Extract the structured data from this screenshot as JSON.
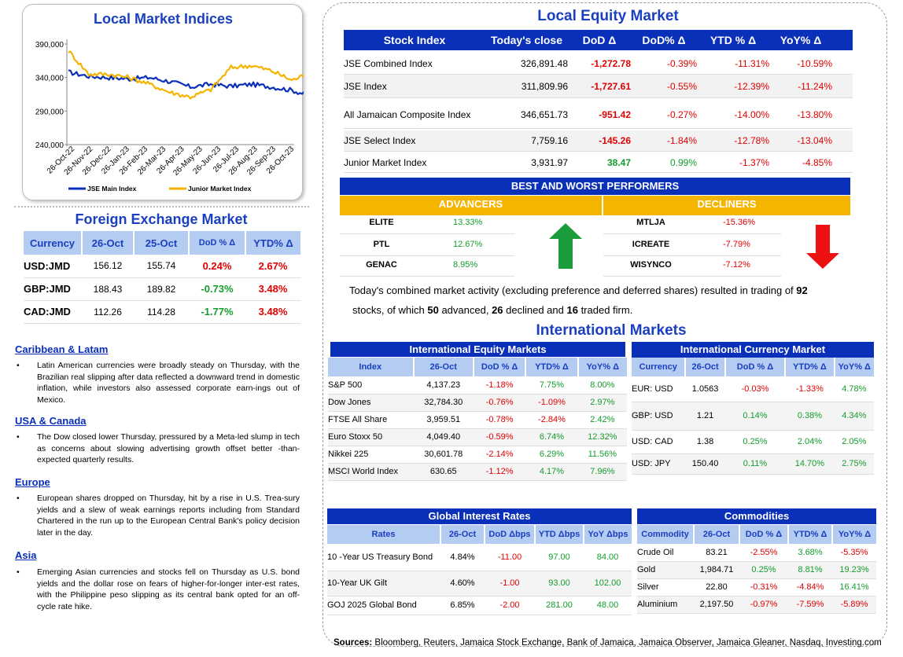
{
  "chart": {
    "title": "Local Market Indices",
    "y_ticks": [
      "390,000",
      "340,000",
      "290,000",
      "240,000"
    ],
    "x_ticks": [
      "26-Oct-22",
      "26-Nov-22",
      "26-Dec-22",
      "26-Jan-23",
      "26-Feb-23",
      "26-Mar-23",
      "26-Apr-23",
      "26-May-23",
      "26-Jun-23",
      "26-Jul-23",
      "26-Aug-23",
      "26-Sep-23",
      "26-Oct-23"
    ],
    "legend": [
      "JSE Main Index",
      "Junior Market Index"
    ]
  },
  "chart_data": {
    "type": "line",
    "ylim": [
      240000,
      390000
    ],
    "x": [
      "26-Oct-22",
      "26-Nov-22",
      "26-Dec-22",
      "26-Jan-23",
      "26-Feb-23",
      "26-Mar-23",
      "26-Apr-23",
      "26-May-23",
      "26-Jun-23",
      "26-Jul-23",
      "26-Aug-23",
      "26-Sep-23",
      "26-Oct-23"
    ],
    "series": [
      {
        "name": "JSE Main Index",
        "color": "#0a2fb8",
        "values": [
          348000,
          342000,
          340000,
          338000,
          340000,
          334000,
          326000,
          330000,
          327000,
          330000,
          326000,
          321000,
          312000
        ]
      },
      {
        "name": "Junior Market Index",
        "color": "#f5b400",
        "values": [
          380000,
          345000,
          345000,
          340000,
          330000,
          318000,
          311000,
          322000,
          355000,
          358000,
          350000,
          336000,
          348000
        ]
      }
    ]
  },
  "fx": {
    "title": "Foreign Exchange Market",
    "headers": [
      "Currency",
      "26-Oct",
      "25-Oct",
      "DoD % Δ",
      "YTD% Δ"
    ],
    "rows": [
      {
        "currency": "USD:JMD",
        "today": "156.12",
        "prev": "155.74",
        "dod": "0.24%",
        "ytd": "2.67%",
        "dod_color": "red",
        "ytd_color": "red"
      },
      {
        "currency": "GBP:JMD",
        "today": "188.43",
        "prev": "189.82",
        "dod": "-0.73%",
        "ytd": "3.48%",
        "dod_color": "green",
        "ytd_color": "red"
      },
      {
        "currency": "CAD:JMD",
        "today": "112.26",
        "prev": "114.28",
        "dod": "-1.77%",
        "ytd": "3.48%",
        "dod_color": "green",
        "ytd_color": "red"
      }
    ]
  },
  "news": [
    {
      "heading": "Caribbean & Latam",
      "body": "Latin American currencies were broadly steady on Thursday, with the Brazilian real slipping after data reflected a downward trend in domestic inflation, while investors also assessed corporate earn-ings out of Mexico."
    },
    {
      "heading": "USA & Canada",
      "body": "The Dow closed lower Thursday, pressured by a Meta-led slump in tech as concerns about slowing advertising growth offset better -than-expected quarterly results."
    },
    {
      "heading": "Europe",
      "body": "European shares dropped on Thursday, hit by a rise in U.S. Trea-sury yields and a slew of weak earnings reports including from Standard Chartered in the run up to the European Central Bank's policy decision later in the day."
    },
    {
      "heading": "Asia",
      "body": "Emerging Asian currencies and stocks fell on Thursday as U.S. bond yields and the dollar rose on fears of higher-for-longer inter-est rates, with the Philippine peso slipping as its central bank opted for an off-cycle rate hike."
    }
  ],
  "equity": {
    "title": "Local Equity Market",
    "headers": [
      "Stock Index",
      "Today's close",
      "DoD  Δ",
      "DoD% Δ",
      "YTD % Δ",
      "YoY% Δ"
    ],
    "rows": [
      {
        "name": "JSE Combined Index",
        "close": "326,891.48",
        "dod": "-1,272.78",
        "dodp": "-0.39%",
        "ytd": "-11.31%",
        "yoy": "-10.59%"
      },
      {
        "name": "JSE Index",
        "close": "311,809.96",
        "dod": "-1,727.61",
        "dodp": "-0.55%",
        "ytd": "-12.39%",
        "yoy": "-11.24%"
      },
      {
        "name": "All Jamaican Composite Index",
        "close": "346,651.73",
        "dod": "-951.42",
        "dodp": "-0.27%",
        "ytd": "-14.00%",
        "yoy": "-13.80%"
      },
      {
        "name": "JSE Select Index",
        "close": "7,759.16",
        "dod": "-145.26",
        "dodp": "-1.84%",
        "ytd": "-12.78%",
        "yoy": "-13.04%"
      },
      {
        "name": "Junior Market Index",
        "close": "3,931.97",
        "dod": "38.47",
        "dodp": "0.99%",
        "ytd": "-1.37%",
        "yoy": "-4.85%"
      }
    ]
  },
  "best_worst": {
    "title": "BEST AND WORST PERFORMERS",
    "advancers_label": "ADVANCERS",
    "decliners_label": "DECLINERS",
    "advancers": [
      {
        "name": "ELITE",
        "value": "13.33%"
      },
      {
        "name": "PTL",
        "value": "12.67%"
      },
      {
        "name": "GENAC",
        "value": "8.95%"
      }
    ],
    "decliners": [
      {
        "name": "MTLJA",
        "value": "-15.36%"
      },
      {
        "name": "ICREATE",
        "value": "-7.79%"
      },
      {
        "name": "WISYNCO",
        "value": "-7.12%"
      }
    ]
  },
  "summary": {
    "line1_a": "Today's combined market activity (excluding preference and deferred shares) resulted in trading of ",
    "traded": "92",
    "line2_a": "stocks, of which ",
    "advanced": "50",
    "line2_b": " advanced, ",
    "declined": "26",
    "line2_c": " declined and ",
    "firm": "16",
    "line2_d": " traded firm."
  },
  "intl": {
    "title": "International Markets",
    "equity_title": "International Equity Markets",
    "equity_headers": [
      "Index",
      "26-Oct",
      "DoD % Δ",
      "YTD% Δ",
      "YoY% Δ"
    ],
    "equity_rows": [
      {
        "name": "S&P 500",
        "val": "4,137.23",
        "dod": "-1.18%",
        "ytd": "7.75%",
        "yoy": "8.00%"
      },
      {
        "name": "Dow Jones",
        "val": "32,784.30",
        "dod": "-0.76%",
        "ytd": "-1.09%",
        "yoy": "2.97%"
      },
      {
        "name": "FTSE All Share",
        "val": "3,959.51",
        "dod": "-0.78%",
        "ytd": "-2.84%",
        "yoy": "2.42%"
      },
      {
        "name": "Euro Stoxx 50",
        "val": "4,049.40",
        "dod": "-0.59%",
        "ytd": "6.74%",
        "yoy": "12.32%"
      },
      {
        "name": "Nikkei 225",
        "val": "30,601.78",
        "dod": "-2.14%",
        "ytd": "6.29%",
        "yoy": "11.56%"
      },
      {
        "name": "MSCI World Index",
        "val": "630.65",
        "dod": "-1.12%",
        "ytd": "4.17%",
        "yoy": "7.96%"
      }
    ],
    "currency_title": "International Currency Market",
    "currency_headers": [
      "Currency",
      "26-Oct",
      "DoD % Δ",
      "YTD% Δ",
      "YoY% Δ"
    ],
    "currency_rows": [
      {
        "name": "EUR: USD",
        "val": "1.0563",
        "dod": "-0.03%",
        "ytd": "-1.33%",
        "yoy": "4.78%"
      },
      {
        "name": "GBP: USD",
        "val": "1.21",
        "dod": "0.14%",
        "ytd": "0.38%",
        "yoy": "4.34%"
      },
      {
        "name": "USD: CAD",
        "val": "1.38",
        "dod": "0.25%",
        "ytd": "2.04%",
        "yoy": "2.05%"
      },
      {
        "name": "USD: JPY",
        "val": "150.40",
        "dod": "0.11%",
        "ytd": "14.70%",
        "yoy": "2.75%"
      }
    ],
    "rates_title": "Global Interest Rates",
    "rates_headers": [
      "Rates",
      "26-Oct",
      "DoD Δbps",
      "YTD Δbps",
      "YoY Δbps"
    ],
    "rates_rows": [
      {
        "name": "10 -Year US Treasury Bond",
        "val": "4.84%",
        "dod": "-11.00",
        "ytd": "97.00",
        "yoy": "84.00"
      },
      {
        "name": "10-Year UK Gilt",
        "val": "4.60%",
        "dod": "-1.00",
        "ytd": "93.00",
        "yoy": "102.00"
      },
      {
        "name": "GOJ 2025 Global Bond",
        "val": "6.85%",
        "dod": "-2.00",
        "ytd": "281.00",
        "yoy": "48.00"
      }
    ],
    "comm_title": "Commodities",
    "comm_headers": [
      "Commodity",
      "26-Oct",
      "DoD % Δ",
      "YTD% Δ",
      "YoY% Δ"
    ],
    "comm_rows": [
      {
        "name": "Crude Oil",
        "val": "83.21",
        "dod": "-2.55%",
        "ytd": "3.68%",
        "yoy": "-5.35%"
      },
      {
        "name": "Gold",
        "val": "1,984.71",
        "dod": "0.25%",
        "ytd": "8.81%",
        "yoy": "19.23%"
      },
      {
        "name": "Silver",
        "val": "22.80",
        "dod": "-0.31%",
        "ytd": "-4.84%",
        "yoy": "16.41%"
      },
      {
        "name": "Aluminium",
        "val": "2,197.50",
        "dod": "-0.97%",
        "ytd": "-7.59%",
        "yoy": "-5.89%"
      }
    ]
  },
  "sources": {
    "label": "Sources:",
    "text": " Bloomberg, Reuters, Jamaica Stock Exchange, Bank of Jamaica, Jamaica Observer, Jamaica Gleaner, Nasdaq, Investing.com"
  }
}
